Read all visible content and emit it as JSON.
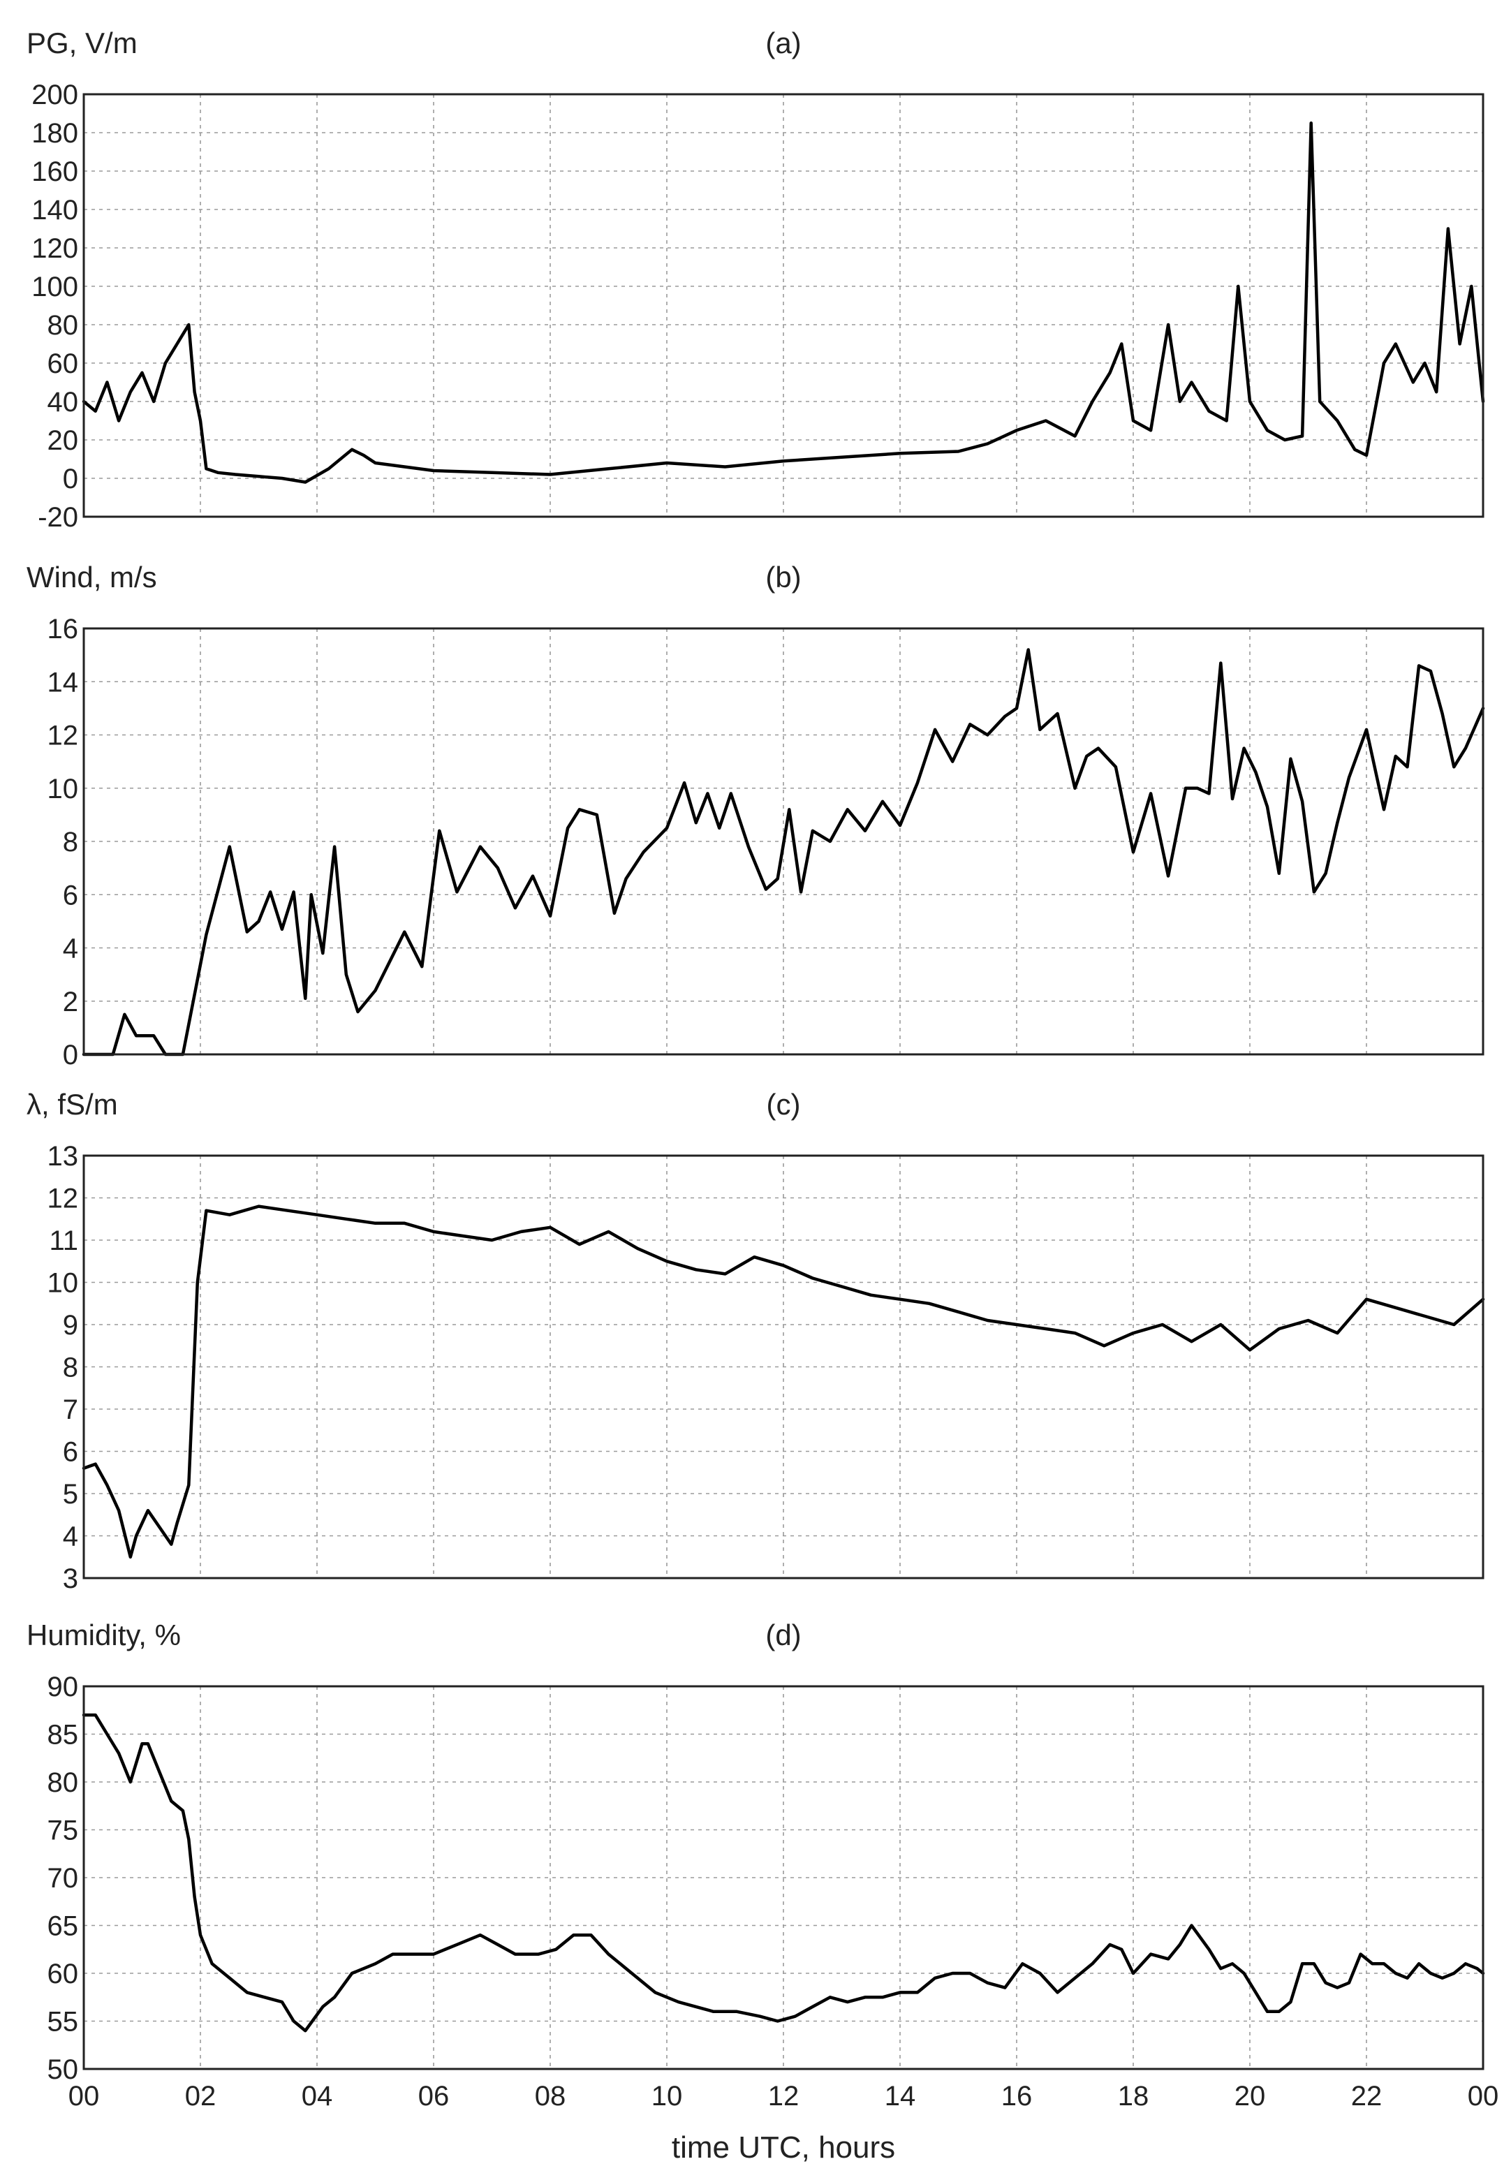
{
  "figure": {
    "xlabel": "time UTC, hours",
    "x_ticks": [
      "00",
      "02",
      "04",
      "06",
      "08",
      "10",
      "12",
      "14",
      "16",
      "18",
      "20",
      "22",
      "00"
    ]
  },
  "chart_data": [
    {
      "type": "line",
      "panel": "(a)",
      "ylabel": "PG, V/m",
      "xlim": [
        0,
        24
      ],
      "ylim": [
        -20,
        200
      ],
      "y_ticks": [
        -20,
        0,
        20,
        40,
        60,
        80,
        100,
        120,
        140,
        160,
        180,
        200
      ],
      "grid": true,
      "series": [
        {
          "x": [
            0,
            0.2,
            0.4,
            0.6,
            0.8,
            1.0,
            1.2,
            1.4,
            1.6,
            1.8,
            1.9,
            2.0,
            2.1,
            2.3,
            2.6,
            3.0,
            3.4,
            3.8,
            4.2,
            4.6,
            4.8,
            5.0,
            5.5,
            6,
            7,
            8,
            9,
            10,
            11,
            12,
            13,
            14,
            15,
            15.5,
            16,
            16.5,
            17,
            17.3,
            17.6,
            17.8,
            18,
            18.3,
            18.6,
            18.8,
            19,
            19.3,
            19.6,
            19.8,
            20,
            20.3,
            20.6,
            20.9,
            21.05,
            21.2,
            21.5,
            21.8,
            22,
            22.3,
            22.5,
            22.8,
            23,
            23.2,
            23.4,
            23.6,
            23.8,
            24
          ],
          "y": [
            40,
            35,
            50,
            30,
            45,
            55,
            40,
            60,
            70,
            80,
            45,
            30,
            5,
            3,
            2,
            1,
            0,
            -2,
            5,
            15,
            12,
            8,
            6,
            4,
            3,
            2,
            5,
            8,
            6,
            9,
            11,
            13,
            14,
            18,
            25,
            30,
            22,
            40,
            55,
            70,
            30,
            25,
            80,
            40,
            50,
            35,
            30,
            100,
            40,
            25,
            20,
            22,
            185,
            40,
            30,
            15,
            12,
            60,
            70,
            50,
            60,
            45,
            130,
            70,
            100,
            40
          ]
        }
      ]
    },
    {
      "type": "line",
      "panel": "(b)",
      "ylabel": "Wind, m/s",
      "xlim": [
        0,
        24
      ],
      "ylim": [
        0,
        16
      ],
      "y_ticks": [
        0,
        2,
        4,
        6,
        8,
        10,
        12,
        14,
        16
      ],
      "grid": true,
      "series": [
        {
          "x": [
            0,
            0.5,
            0.7,
            0.9,
            1.2,
            1.4,
            1.7,
            2.1,
            2.5,
            2.8,
            3.0,
            3.2,
            3.4,
            3.6,
            3.8,
            3.9,
            4.1,
            4.3,
            4.5,
            4.7,
            5.0,
            5.5,
            5.8,
            6.1,
            6.4,
            6.8,
            7.1,
            7.4,
            7.7,
            8.0,
            8.3,
            8.5,
            8.8,
            9.1,
            9.3,
            9.6,
            10,
            10.3,
            10.5,
            10.7,
            10.9,
            11.1,
            11.4,
            11.7,
            11.9,
            12.1,
            12.3,
            12.5,
            12.8,
            13.1,
            13.4,
            13.7,
            14,
            14.3,
            14.6,
            14.9,
            15.2,
            15.5,
            15.8,
            16,
            16.2,
            16.4,
            16.7,
            17,
            17.2,
            17.4,
            17.7,
            18,
            18.3,
            18.6,
            18.9,
            19.1,
            19.3,
            19.5,
            19.7,
            19.9,
            20.1,
            20.3,
            20.5,
            20.7,
            20.9,
            21.1,
            21.3,
            21.5,
            21.7,
            22,
            22.3,
            22.5,
            22.7,
            22.9,
            23.1,
            23.3,
            23.5,
            23.7,
            24
          ],
          "y": [
            0,
            0,
            1.5,
            0.7,
            0.7,
            0,
            0,
            4.5,
            7.8,
            4.6,
            5.0,
            6.1,
            4.7,
            6.1,
            2.1,
            6.0,
            3.8,
            7.8,
            3.0,
            1.6,
            2.4,
            4.6,
            3.3,
            8.4,
            6.1,
            7.8,
            7.0,
            5.5,
            6.7,
            5.2,
            8.5,
            9.2,
            9.0,
            5.3,
            6.6,
            7.6,
            8.5,
            10.2,
            8.7,
            9.8,
            8.5,
            9.8,
            7.8,
            6.2,
            6.6,
            9.2,
            6.1,
            8.4,
            8.0,
            9.2,
            8.4,
            9.5,
            8.6,
            10.2,
            12.2,
            11.0,
            12.4,
            12.0,
            12.7,
            13.0,
            15.2,
            12.2,
            12.8,
            10.0,
            11.2,
            11.5,
            10.8,
            7.6,
            9.8,
            6.7,
            10.0,
            10.0,
            9.8,
            14.7,
            9.6,
            11.5,
            10.6,
            9.3,
            6.8,
            11.1,
            9.5,
            6.1,
            6.8,
            8.7,
            10.4,
            12.2,
            9.2,
            11.2,
            10.8,
            14.6,
            14.4,
            12.8,
            10.8,
            11.5,
            13.0
          ]
        }
      ]
    },
    {
      "type": "line",
      "panel": "(c)",
      "ylabel": "λ, fS/m",
      "xlim": [
        0,
        24
      ],
      "ylim": [
        3,
        13
      ],
      "y_ticks": [
        3,
        4,
        5,
        6,
        7,
        8,
        9,
        10,
        11,
        12,
        13
      ],
      "grid": true,
      "series": [
        {
          "x": [
            0,
            0.2,
            0.4,
            0.6,
            0.8,
            0.9,
            1.1,
            1.3,
            1.5,
            1.6,
            1.8,
            1.95,
            2.1,
            2.5,
            3,
            3.5,
            4,
            4.5,
            5,
            5.5,
            6,
            6.5,
            7,
            7.5,
            8,
            8.5,
            9,
            9.5,
            10,
            10.5,
            11,
            11.5,
            12,
            12.5,
            13,
            13.5,
            14,
            14.5,
            15,
            15.5,
            16,
            16.5,
            17,
            17.5,
            18,
            18.5,
            19,
            19.5,
            20,
            20.5,
            21,
            21.5,
            22,
            22.5,
            23,
            23.5,
            24
          ],
          "y": [
            5.6,
            5.7,
            5.2,
            4.6,
            3.5,
            4.0,
            4.6,
            4.2,
            3.8,
            4.3,
            5.2,
            10.0,
            11.7,
            11.6,
            11.8,
            11.7,
            11.6,
            11.5,
            11.4,
            11.4,
            11.2,
            11.1,
            11.0,
            11.2,
            11.3,
            10.9,
            11.2,
            10.8,
            10.5,
            10.3,
            10.2,
            10.6,
            10.4,
            10.1,
            9.9,
            9.7,
            9.6,
            9.5,
            9.3,
            9.1,
            9.0,
            8.9,
            8.8,
            8.5,
            8.8,
            9.0,
            8.6,
            9.0,
            8.4,
            8.9,
            9.1,
            8.8,
            9.6,
            9.4,
            9.2,
            9.0,
            9.6
          ]
        }
      ]
    },
    {
      "type": "line",
      "panel": "(d)",
      "ylabel": "Humidity, %",
      "xlim": [
        0,
        24
      ],
      "ylim": [
        50,
        90
      ],
      "y_ticks": [
        50,
        55,
        60,
        65,
        70,
        75,
        80,
        85,
        90
      ],
      "grid": true,
      "series": [
        {
          "x": [
            0,
            0.2,
            0.4,
            0.6,
            0.8,
            1.0,
            1.1,
            1.3,
            1.5,
            1.7,
            1.8,
            1.9,
            2.0,
            2.2,
            2.5,
            2.8,
            3.1,
            3.4,
            3.6,
            3.8,
            4.1,
            4.3,
            4.6,
            5.0,
            5.3,
            5.6,
            6,
            6.4,
            6.8,
            7.1,
            7.4,
            7.8,
            8.1,
            8.4,
            8.7,
            9,
            9.4,
            9.8,
            10.2,
            10.5,
            10.8,
            11.2,
            11.6,
            11.9,
            12.2,
            12.5,
            12.8,
            13.1,
            13.4,
            13.7,
            14,
            14.3,
            14.6,
            14.9,
            15.2,
            15.5,
            15.8,
            16.1,
            16.4,
            16.7,
            17,
            17.3,
            17.6,
            17.8,
            18,
            18.3,
            18.6,
            18.8,
            19,
            19.3,
            19.5,
            19.7,
            19.9,
            20.1,
            20.3,
            20.5,
            20.7,
            20.9,
            21.1,
            21.3,
            21.5,
            21.7,
            21.9,
            22.1,
            22.3,
            22.5,
            22.7,
            22.9,
            23.1,
            23.3,
            23.5,
            23.7,
            23.9,
            24
          ],
          "y": [
            87,
            87,
            85,
            83,
            80,
            84,
            84,
            81,
            78,
            77,
            74,
            68,
            64,
            61,
            59.5,
            58,
            57.5,
            57,
            55,
            54,
            56.5,
            57.5,
            60,
            61,
            62,
            62,
            62,
            63,
            64,
            63,
            62,
            62,
            62.5,
            64,
            64,
            62,
            60,
            58,
            57,
            56.5,
            56,
            56,
            55.5,
            55,
            55.5,
            56.5,
            57.5,
            57,
            57.5,
            57.5,
            58,
            58,
            59.5,
            60,
            60,
            59,
            58.5,
            61,
            60,
            58,
            59.5,
            61,
            63,
            62.5,
            60,
            62,
            61.5,
            63,
            65,
            62.5,
            60.5,
            61,
            60,
            58,
            56,
            56,
            57,
            61,
            61,
            59,
            58.5,
            59,
            62,
            61,
            61,
            60,
            59.5,
            61,
            60,
            59.5,
            60,
            61,
            60.5,
            60
          ]
        }
      ]
    }
  ]
}
